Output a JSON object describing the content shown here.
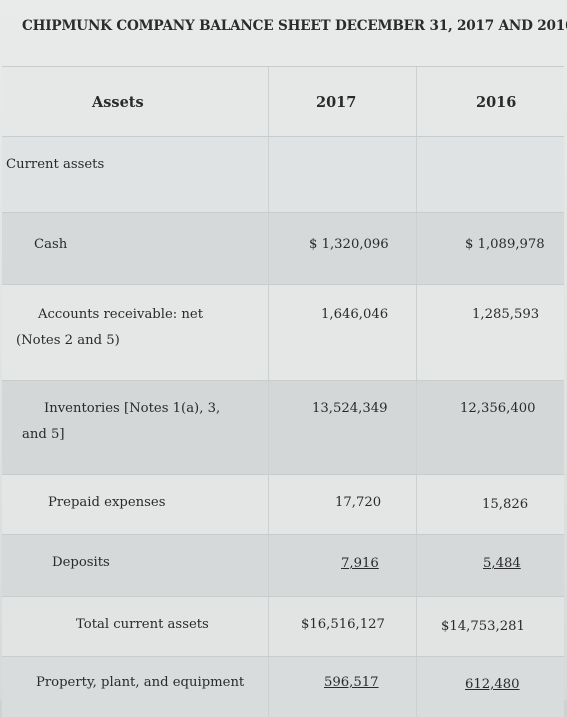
{
  "title": "CHIPMUNK COMPANY BALANCE SHEET DECEMBER 31, 2017 AND 2016",
  "header": {
    "assets": "Assets",
    "col1": "2017",
    "col2": "2016"
  },
  "section": "Current assets",
  "rows": [
    {
      "label": "Cash",
      "v2017": "$ 1,320,096",
      "v2016": "$ 1,089,978"
    },
    {
      "label_line1": "Accounts receivable: net",
      "label_line2": "(Notes 2 and 5)",
      "v2017": "1,646,046",
      "v2016": "1,285,593"
    },
    {
      "label_line1": "Inventories [Notes 1(a), 3,",
      "label_line2": "and 5]",
      "v2017": "13,524,349",
      "v2016": "12,356,400"
    },
    {
      "label": "Prepaid expenses",
      "v2017": "17,720",
      "v2016": "15,826"
    },
    {
      "label": "Deposits",
      "v2017": "7,916",
      "v2016": "5,484"
    },
    {
      "label": "Total current assets",
      "v2017": "$16,516,127",
      "v2016": "$14,753,281"
    },
    {
      "label": "Property, plant, and equipment",
      "v2017": "596,517",
      "v2016": "612,480"
    }
  ]
}
